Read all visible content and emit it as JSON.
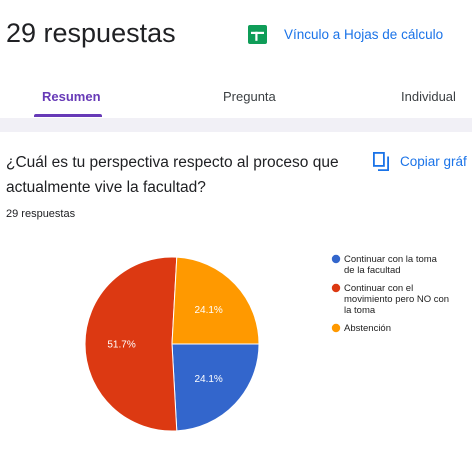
{
  "header": {
    "responses_title": "29 respuestas",
    "sheets_link_label": "Vínculo a Hojas de cálculo"
  },
  "tabs": [
    {
      "label": "Resumen",
      "active": true
    },
    {
      "label": "Pregunta",
      "active": false
    },
    {
      "label": "Individual",
      "active": false
    }
  ],
  "question": {
    "text": "¿Cuál es tu perspectiva respecto al proceso que actualmente vive la facultad?",
    "copy_label": "Copiar gráf",
    "count": "29 respuestas"
  },
  "colors": {
    "accent": "#673ab7",
    "link": "#1a73e8",
    "sheets_green": "#0f9d58"
  },
  "chart_data": {
    "type": "pie",
    "values": [
      24.1,
      51.7,
      24.1
    ],
    "value_labels": [
      "24.1%",
      "51.7%",
      "24.1%"
    ],
    "legend": [
      {
        "label": "Continuar con la toma de la facultad",
        "color": "#3366cc"
      },
      {
        "label": "Continuar con el movimiento pero NO con la toma",
        "color": "#dc3912"
      },
      {
        "label": "Abstención",
        "color": "#ff9900"
      }
    ],
    "legend_position": "right"
  }
}
